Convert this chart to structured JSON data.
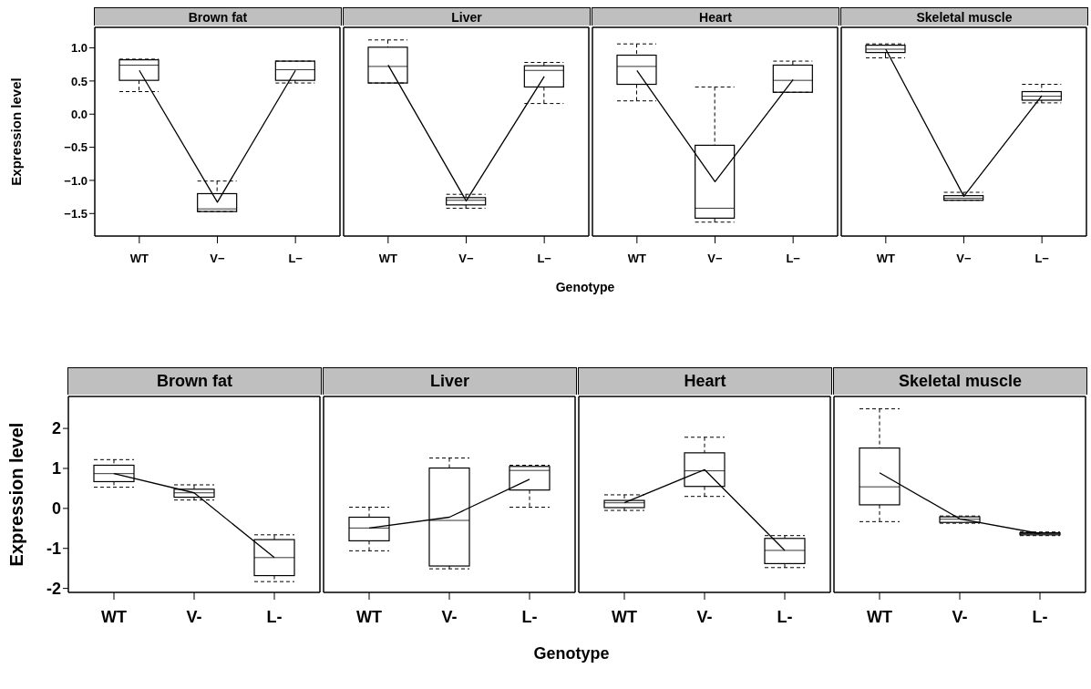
{
  "chart_data": [
    {
      "type": "box",
      "title": "Brown fat",
      "ylabel": "Expression level",
      "categories": [
        "WT",
        "V−",
        "L−"
      ],
      "color": "#000000",
      "ylim": [
        -1.84,
        1.31
      ],
      "yticks": [
        {
          "value": -1.5,
          "label": "−1.5"
        },
        {
          "value": -1,
          "label": "−1.0"
        },
        {
          "value": -0.5,
          "label": "−0.5"
        },
        {
          "value": 0,
          "label": "0.0"
        },
        {
          "value": 0.5,
          "label": "0.5"
        },
        {
          "value": 1,
          "label": "1.0"
        }
      ],
      "boxes": [
        {
          "low": 0.34,
          "q1": 0.51,
          "median": 0.74,
          "q3": 0.82,
          "high": 0.83
        },
        {
          "low": -1.47,
          "q1": -1.47,
          "median": -1.43,
          "q3": -1.2,
          "high": -1.01
        },
        {
          "low": 0.47,
          "q1": 0.51,
          "median": 0.67,
          "q3": 0.8,
          "high": 0.8
        }
      ],
      "series": [
        {
          "type": "line",
          "color": "#000000",
          "values": [
            0.66,
            -1.33,
            0.66
          ]
        }
      ]
    },
    {
      "type": "box",
      "title": "Liver",
      "xlabel": "Genotype",
      "categories": [
        "WT",
        "V−",
        "L−"
      ],
      "color": "#000000",
      "ylim": [
        -1.84,
        1.31
      ],
      "tick_labels": "x",
      "boxes": [
        {
          "low": 0.47,
          "q1": 0.47,
          "median": 0.72,
          "q3": 1.01,
          "high": 1.12
        },
        {
          "low": -1.42,
          "q1": -1.37,
          "median": -1.3,
          "q3": -1.26,
          "high": -1.21
        },
        {
          "low": 0.16,
          "q1": 0.41,
          "median": 0.66,
          "q3": 0.73,
          "high": 0.78
        }
      ],
      "series": [
        {
          "type": "line",
          "color": "#000000",
          "values": [
            0.74,
            -1.31,
            0.57
          ]
        }
      ]
    },
    {
      "type": "box",
      "title": "Heart",
      "categories": [
        "WT",
        "V−",
        "L−"
      ],
      "color": "#000000",
      "ylim": [
        -1.84,
        1.31
      ],
      "tick_labels": "x",
      "boxes": [
        {
          "low": 0.2,
          "q1": 0.45,
          "median": 0.72,
          "q3": 0.89,
          "high": 1.06
        },
        {
          "low": -1.63,
          "q1": -1.57,
          "median": -1.42,
          "q3": -0.47,
          "high": 0.41
        },
        {
          "low": 0.33,
          "q1": 0.33,
          "median": 0.51,
          "q3": 0.74,
          "high": 0.8
        }
      ],
      "series": [
        {
          "type": "line",
          "color": "#000000",
          "values": [
            0.66,
            -1.02,
            0.52
          ]
        }
      ]
    },
    {
      "type": "box",
      "title": "Skeletal muscle",
      "categories": [
        "WT",
        "V−",
        "L−"
      ],
      "color": "#000000",
      "ylim": [
        -1.84,
        1.31
      ],
      "tick_labels": "x",
      "boxes": [
        {
          "low": 0.85,
          "q1": 0.93,
          "median": 0.98,
          "q3": 1.04,
          "high": 1.06
        },
        {
          "low": -1.3,
          "q1": -1.3,
          "median": -1.27,
          "q3": -1.23,
          "high": -1.18
        },
        {
          "low": 0.17,
          "q1": 0.21,
          "median": 0.27,
          "q3": 0.34,
          "high": 0.45
        }
      ],
      "series": [
        {
          "type": "line",
          "color": "#000000",
          "values": [
            0.98,
            -1.24,
            0.28
          ]
        }
      ]
    },
    {
      "type": "box",
      "title": "Brown fat",
      "ylabel": "Expression level",
      "categories": [
        "WT",
        "V-",
        "L-"
      ],
      "color": "#000000",
      "ylim": [
        -2.1,
        2.8
      ],
      "yticks": [
        -2,
        -1,
        0,
        1,
        2
      ],
      "boxes": [
        {
          "low": 0.53,
          "q1": 0.67,
          "median": 0.87,
          "q3": 1.08,
          "high": 1.22
        },
        {
          "low": 0.21,
          "q1": 0.28,
          "median": 0.39,
          "q3": 0.48,
          "high": 0.59
        },
        {
          "low": -1.83,
          "q1": -1.68,
          "median": -1.23,
          "q3": -0.78,
          "high": -0.66
        }
      ],
      "series": [
        {
          "type": "line",
          "color": "#000000",
          "values": [
            0.87,
            0.39,
            -1.23
          ]
        }
      ]
    },
    {
      "type": "box",
      "title": "Liver",
      "xlabel": "Genotype",
      "categories": [
        "WT",
        "V-",
        "L-"
      ],
      "color": "#000000",
      "ylim": [
        -2.1,
        2.8
      ],
      "tick_labels": "x",
      "boxes": [
        {
          "low": -1.06,
          "q1": -0.81,
          "median": -0.49,
          "q3": -0.22,
          "high": 0.03
        },
        {
          "low": -1.51,
          "q1": -1.44,
          "median": -0.3,
          "q3": 1.01,
          "high": 1.26
        },
        {
          "low": 0.03,
          "q1": 0.46,
          "median": 0.95,
          "q3": 1.05,
          "high": 1.08
        }
      ],
      "series": [
        {
          "type": "line",
          "color": "#000000",
          "values": [
            -0.49,
            -0.22,
            0.73
          ]
        }
      ]
    },
    {
      "type": "box",
      "title": "Heart",
      "categories": [
        "WT",
        "V-",
        "L-"
      ],
      "color": "#000000",
      "ylim": [
        -2.1,
        2.8
      ],
      "tick_labels": "x",
      "boxes": [
        {
          "low": -0.05,
          "q1": 0.02,
          "median": 0.14,
          "q3": 0.2,
          "high": 0.34
        },
        {
          "low": 0.3,
          "q1": 0.55,
          "median": 0.94,
          "q3": 1.39,
          "high": 1.78
        },
        {
          "low": -1.48,
          "q1": -1.38,
          "median": -1.05,
          "q3": -0.75,
          "high": -0.68
        }
      ],
      "series": [
        {
          "type": "line",
          "color": "#000000",
          "values": [
            0.14,
            0.97,
            -1.05
          ]
        }
      ]
    },
    {
      "type": "box",
      "title": "Skeletal muscle",
      "categories": [
        "WT",
        "V-",
        "L-"
      ],
      "color": "#000000",
      "ylim": [
        -2.1,
        2.8
      ],
      "tick_labels": "x",
      "boxes": [
        {
          "low": -0.33,
          "q1": 0.09,
          "median": 0.54,
          "q3": 1.51,
          "high": 2.49
        },
        {
          "low": -0.37,
          "q1": -0.35,
          "median": -0.27,
          "q3": -0.21,
          "high": -0.19
        },
        {
          "low": -0.68,
          "q1": -0.66,
          "median": -0.63,
          "q3": -0.61,
          "high": -0.59
        }
      ],
      "series": [
        {
          "type": "line",
          "color": "#000000",
          "values": [
            0.89,
            -0.26,
            -0.63
          ]
        }
      ]
    }
  ]
}
